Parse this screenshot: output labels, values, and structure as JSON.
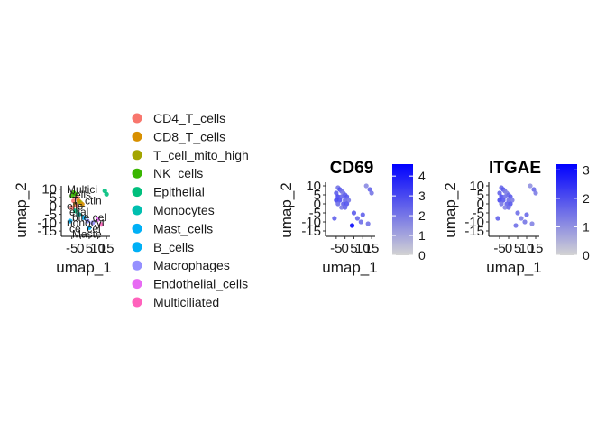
{
  "chart_data": [
    {
      "type": "scatter",
      "panel": "clusters",
      "title": "",
      "xlabel": "umap_1",
      "ylabel": "umap_2",
      "x_ticks": [
        "-5",
        "0",
        "5",
        "10",
        "15"
      ],
      "y_ticks": [
        "10",
        "5",
        "0",
        "-5",
        "-10",
        "-15"
      ],
      "xlim": [
        -9,
        17
      ],
      "ylim": [
        -16,
        12
      ],
      "legend": {
        "position": "right",
        "items": [
          {
            "label": "CD4_T_cells",
            "color": "#F8766D"
          },
          {
            "label": "CD8_T_cells",
            "color": "#D89000"
          },
          {
            "label": "T_cell_mito_high",
            "color": "#A3A500"
          },
          {
            "label": "NK_cells",
            "color": "#39B600"
          },
          {
            "label": "Epithelial",
            "color": "#00BF7D"
          },
          {
            "label": "Monocytes",
            "color": "#00BFAF"
          },
          {
            "label": "Mast_cells",
            "color": "#00B0F6"
          },
          {
            "label": "B_cells",
            "color": "#00B0F6"
          },
          {
            "label": "Macrophages",
            "color": "#9590FF"
          },
          {
            "label": "Endothelial_cells",
            "color": "#E76BF3"
          },
          {
            "label": "Multiciliated",
            "color": "#FF62BC"
          }
        ]
      },
      "cluster_labels": [
        "Multici",
        "cells",
        "T_ctin",
        "ells",
        "elial",
        "bite cel",
        "nonocyt",
        "ce_cel",
        "Maste"
      ],
      "points": [
        {
          "x": -4,
          "y": 8,
          "c": 3
        },
        {
          "x": -3,
          "y": 7,
          "c": 3
        },
        {
          "x": -5,
          "y": 6,
          "c": 3
        },
        {
          "x": -2,
          "y": 5,
          "c": 0
        },
        {
          "x": -4,
          "y": 3,
          "c": 0
        },
        {
          "x": -1,
          "y": 3,
          "c": 1
        },
        {
          "x": -3,
          "y": 1,
          "c": 1
        },
        {
          "x": 0,
          "y": 2,
          "c": 2
        },
        {
          "x": -2,
          "y": 0,
          "c": 0
        },
        {
          "x": 1,
          "y": 1,
          "c": 1
        },
        {
          "x": -5,
          "y": -1,
          "c": 0
        },
        {
          "x": -3,
          "y": -3,
          "c": 4
        },
        {
          "x": -1,
          "y": -5,
          "c": 5
        },
        {
          "x": 2,
          "y": -7,
          "c": 6
        },
        {
          "x": 4,
          "y": -9,
          "c": 8
        },
        {
          "x": 7,
          "y": -10,
          "c": 8
        },
        {
          "x": 10,
          "y": -8,
          "c": 9
        },
        {
          "x": 12,
          "y": -11,
          "c": 10
        },
        {
          "x": 14,
          "y": 9,
          "c": 4
        },
        {
          "x": 15,
          "y": 7,
          "c": 4
        },
        {
          "x": -6,
          "y": -9,
          "c": 7
        },
        {
          "x": 5,
          "y": -13,
          "c": 6
        }
      ]
    },
    {
      "type": "scatter",
      "panel": "CD69",
      "title": "CD69",
      "xlabel": "umap_1",
      "ylabel": "umap_2",
      "x_ticks": [
        "-5",
        "0",
        "5",
        "10",
        "15"
      ],
      "y_ticks": [
        "10",
        "5",
        "0",
        "-5",
        "-10",
        "-15"
      ],
      "xlim": [
        -9,
        17
      ],
      "ylim": [
        -16,
        12
      ],
      "colorbar": {
        "min": 0,
        "max": 4.6,
        "ticks": [
          "4",
          "3",
          "2",
          "1",
          "0"
        ],
        "tick_values": [
          4,
          3,
          2,
          1,
          0
        ],
        "low_color": "#D3D3D3",
        "high_color": "#0000FF"
      },
      "points": [
        {
          "x": -4,
          "y": 9,
          "v": 2.0
        },
        {
          "x": -3,
          "y": 8,
          "v": 2.8
        },
        {
          "x": -2,
          "y": 7,
          "v": 2.2
        },
        {
          "x": -5,
          "y": 6,
          "v": 2.6
        },
        {
          "x": -1,
          "y": 6,
          "v": 1.8
        },
        {
          "x": 0,
          "y": 5,
          "v": 2.5
        },
        {
          "x": -4,
          "y": 4,
          "v": 3.0
        },
        {
          "x": -2,
          "y": 4,
          "v": 2.4
        },
        {
          "x": 1,
          "y": 4,
          "v": 2.7
        },
        {
          "x": -5,
          "y": 2,
          "v": 3.1
        },
        {
          "x": -3,
          "y": 2,
          "v": 2.9
        },
        {
          "x": 0,
          "y": 2,
          "v": 2.3
        },
        {
          "x": 2,
          "y": 2,
          "v": 2.0
        },
        {
          "x": -1,
          "y": 0,
          "v": 2.6
        },
        {
          "x": 1,
          "y": 0,
          "v": 2.8
        },
        {
          "x": -4,
          "y": 0,
          "v": 2.2
        },
        {
          "x": -2,
          "y": -2,
          "v": 1.9
        },
        {
          "x": 0,
          "y": -2,
          "v": 2.4
        },
        {
          "x": -6,
          "y": -8,
          "v": 2.5
        },
        {
          "x": 5,
          "y": -5,
          "v": 2.6
        },
        {
          "x": 7,
          "y": -8,
          "v": 2.3
        },
        {
          "x": 10,
          "y": -6,
          "v": 2.5
        },
        {
          "x": 9,
          "y": -10,
          "v": 2.2
        },
        {
          "x": 4,
          "y": -12,
          "v": 4.4
        },
        {
          "x": 12,
          "y": 10,
          "v": 1.6
        },
        {
          "x": 14,
          "y": 8,
          "v": 2.4
        },
        {
          "x": 15,
          "y": 6,
          "v": 2.0
        },
        {
          "x": 13,
          "y": -11,
          "v": 2.1
        }
      ]
    },
    {
      "type": "scatter",
      "panel": "ITGAE",
      "title": "ITGAE",
      "xlabel": "umap_1",
      "ylabel": "umap_2",
      "x_ticks": [
        "-5",
        "0",
        "5",
        "10",
        "15"
      ],
      "y_ticks": [
        "10",
        "5",
        "0",
        "-5",
        "-10",
        "-15"
      ],
      "xlim": [
        -9,
        17
      ],
      "ylim": [
        -16,
        12
      ],
      "colorbar": {
        "min": 0,
        "max": 3.2,
        "ticks": [
          "3",
          "2",
          "1",
          "0"
        ],
        "tick_values": [
          3,
          2,
          1,
          0
        ],
        "low_color": "#D3D3D3",
        "high_color": "#0000FF"
      },
      "points": [
        {
          "x": -4,
          "y": 9,
          "v": 1.6
        },
        {
          "x": -3,
          "y": 8,
          "v": 1.9
        },
        {
          "x": -2,
          "y": 7,
          "v": 1.4
        },
        {
          "x": -5,
          "y": 6,
          "v": 1.7
        },
        {
          "x": -1,
          "y": 6,
          "v": 1.2
        },
        {
          "x": 0,
          "y": 5,
          "v": 1.6
        },
        {
          "x": -4,
          "y": 4,
          "v": 2.0
        },
        {
          "x": -2,
          "y": 4,
          "v": 1.5
        },
        {
          "x": 1,
          "y": 4,
          "v": 1.8
        },
        {
          "x": -5,
          "y": 2,
          "v": 2.1
        },
        {
          "x": -3,
          "y": 2,
          "v": 1.9
        },
        {
          "x": 0,
          "y": 2,
          "v": 1.5
        },
        {
          "x": 2,
          "y": 2,
          "v": 1.3
        },
        {
          "x": -1,
          "y": 0,
          "v": 1.7
        },
        {
          "x": 1,
          "y": 0,
          "v": 1.9
        },
        {
          "x": -4,
          "y": 0,
          "v": 1.4
        },
        {
          "x": -2,
          "y": -2,
          "v": 1.2
        },
        {
          "x": 0,
          "y": -2,
          "v": 1.6
        },
        {
          "x": -6,
          "y": -8,
          "v": 1.7
        },
        {
          "x": 5,
          "y": -5,
          "v": 1.5
        },
        {
          "x": 7,
          "y": -8,
          "v": 1.3
        },
        {
          "x": 10,
          "y": -6,
          "v": 1.6
        },
        {
          "x": 9,
          "y": -10,
          "v": 1.4
        },
        {
          "x": 4,
          "y": -12,
          "v": 1.5
        },
        {
          "x": 12,
          "y": 10,
          "v": 1.0
        },
        {
          "x": 14,
          "y": 8,
          "v": 1.6
        },
        {
          "x": 15,
          "y": 6,
          "v": 1.3
        },
        {
          "x": 13,
          "y": -11,
          "v": 1.2
        }
      ]
    }
  ]
}
